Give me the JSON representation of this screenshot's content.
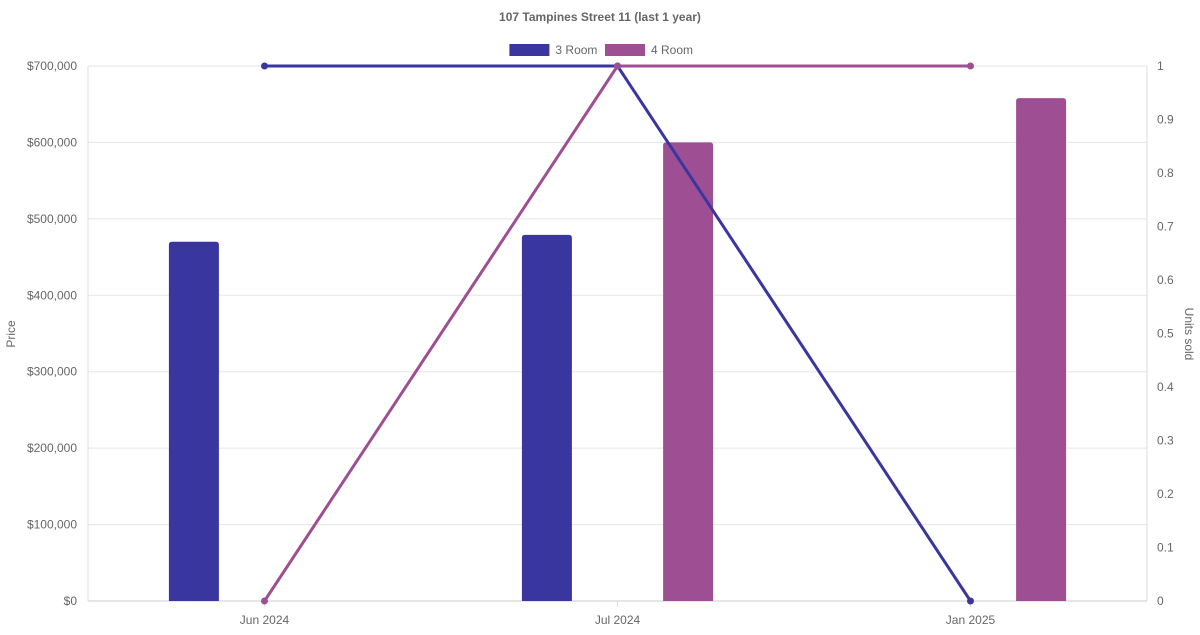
{
  "chart_data": {
    "type": "bar",
    "title": "107 Tampines Street 11 (last 1 year)",
    "categories": [
      "Jun 2024",
      "Jul 2024",
      "Jan 2025"
    ],
    "ylabel": "Price",
    "y2label": "Units sold",
    "ylim": [
      0,
      700000
    ],
    "y2lim": [
      0,
      1
    ],
    "yticks": [
      "$0",
      "$100,000",
      "$200,000",
      "$300,000",
      "$400,000",
      "$500,000",
      "$600,000",
      "$700,000"
    ],
    "y2ticks": [
      "0",
      "0.1",
      "0.2",
      "0.3",
      "0.4",
      "0.5",
      "0.6",
      "0.7",
      "0.8",
      "0.9",
      "1"
    ],
    "grid": true,
    "legend_position": "top",
    "series": [
      {
        "name": "3 Room",
        "color": "#3a36a0",
        "price": [
          470000,
          479000,
          null
        ],
        "units_sold": [
          1,
          1,
          0
        ]
      },
      {
        "name": "4 Room",
        "color": "#9e4f93",
        "price": [
          null,
          600000,
          658000
        ],
        "units_sold": [
          0,
          1,
          1
        ]
      }
    ]
  }
}
